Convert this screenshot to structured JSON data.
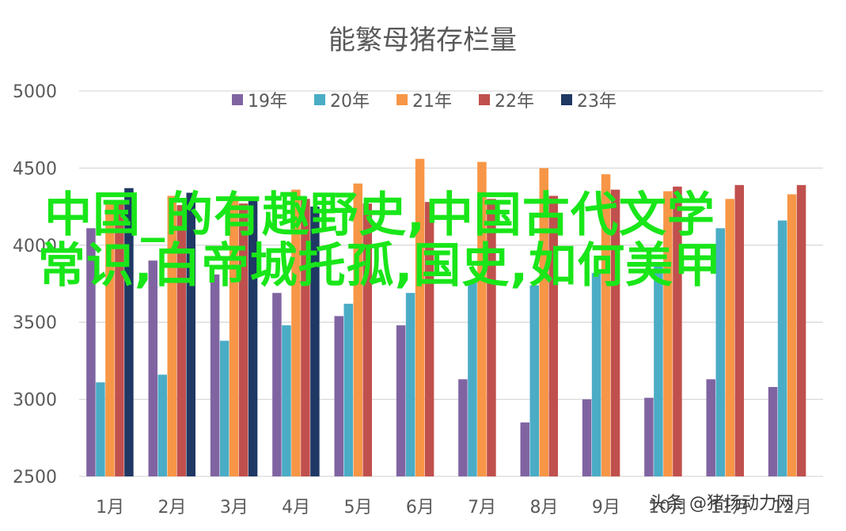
{
  "chart_data": {
    "type": "bar",
    "title": "能繁母猪存栏量",
    "categories": [
      "1月",
      "2月",
      "3月",
      "4月",
      "5月",
      "6月",
      "7月",
      "8月",
      "9月",
      "10月",
      "11月",
      "12月"
    ],
    "ylim": [
      2500,
      5000
    ],
    "yticks": [
      2500,
      3000,
      3500,
      4000,
      4500,
      5000
    ],
    "grid": true,
    "legend_position": "top",
    "series": [
      {
        "name": "19年",
        "color": "#8064a2",
        "values": [
          4110,
          3900,
          3810,
          3690,
          3540,
          3480,
          3130,
          2850,
          3000,
          3010,
          3130,
          3080
        ]
      },
      {
        "name": "20年",
        "color": "#4bacc6",
        "values": [
          3110,
          3160,
          3380,
          3480,
          3620,
          3690,
          3770,
          3740,
          3820,
          3880,
          4110,
          4160
        ]
      },
      {
        "name": "21年",
        "color": "#f79646",
        "values": [
          4280,
          4320,
          4320,
          4360,
          4400,
          4560,
          4540,
          4500,
          4460,
          4350,
          4300,
          4330
        ]
      },
      {
        "name": "22年",
        "color": "#c0504d",
        "values": [
          4280,
          4260,
          4270,
          4300,
          4270,
          4280,
          4300,
          4320,
          4360,
          4380,
          4390,
          4390
        ]
      },
      {
        "name": "23年",
        "color": "#1f3864",
        "values": [
          4370,
          4340,
          4310,
          4250,
          null,
          null,
          null,
          null,
          null,
          null,
          null,
          null
        ]
      }
    ]
  },
  "overlay": {
    "text": "中国_的有趣野史,中国古代文学常识,白帝城托孤,国史,如何美甲"
  },
  "watermark": {
    "text": "头条 @猪场动力网"
  }
}
